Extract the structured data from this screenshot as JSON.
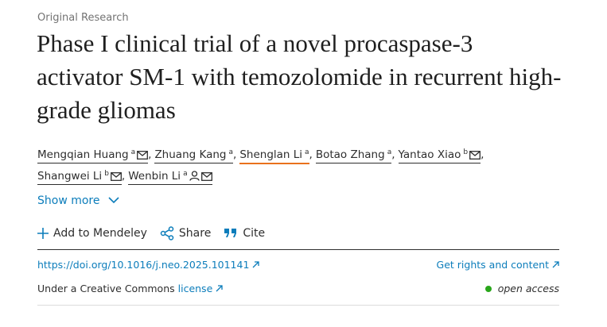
{
  "article": {
    "label": "Original Research",
    "title": "Phase I clinical trial of a novel procaspase-3 activator SM-1 with temozolomide in recurrent high-grade gliomas",
    "authors": [
      {
        "name": "Mengqian Huang",
        "sup": "a",
        "mail": true,
        "sep": ","
      },
      {
        "name": "Zhuang Kang",
        "sup": "a",
        "mail": false,
        "sep": ","
      },
      {
        "name": "Shenglan Li",
        "sup": "a",
        "mail": false,
        "sep": ",",
        "highlight": true
      },
      {
        "name": "Botao Zhang",
        "sup": "a",
        "mail": false,
        "sep": ","
      },
      {
        "name": "Yantao Xiao",
        "sup": "b",
        "mail": true,
        "sep": ","
      },
      {
        "name": "Shangwei Li",
        "sup": "b",
        "mail": true,
        "sep": ","
      },
      {
        "name": "Wenbin Li",
        "sup": "a",
        "person": true,
        "mail": true
      }
    ],
    "show_more": "Show more",
    "actions": {
      "mendeley": "Add to Mendeley",
      "share": "Share",
      "cite": "Cite"
    },
    "doi": "https://doi.org/10.1016/j.neo.2025.101141",
    "rights": "Get rights and content",
    "license_prefix": "Under a Creative Commons",
    "license_link": "license",
    "access": "open access"
  }
}
